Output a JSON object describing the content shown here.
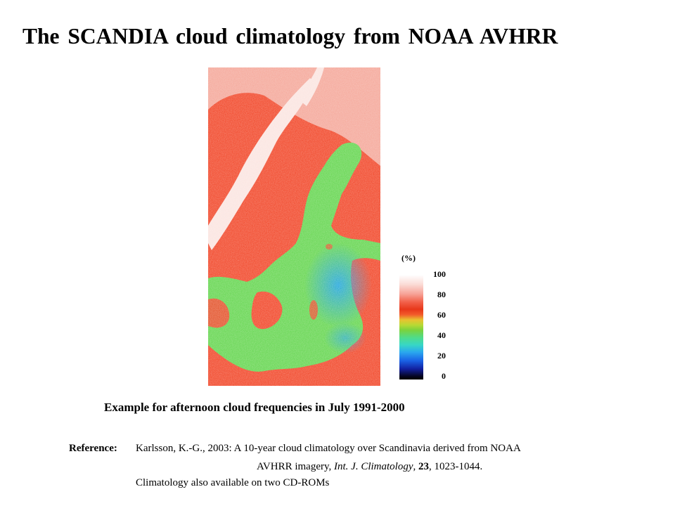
{
  "title": "The SCANDIA cloud climatology from NOAA AVHRR",
  "legend": {
    "unit": "(%)",
    "ticks": [
      "100",
      "80",
      "60",
      "40",
      "20",
      "0"
    ],
    "colors": {
      "c100": "#ffffff",
      "c80": "#f7a59a",
      "c60": "#e8371a",
      "c40": "#7ad23e",
      "c20": "#2aa7ee",
      "c0": "#000000"
    }
  },
  "map_colors": {
    "land_high": "#f6bcb2",
    "land": "#f25236",
    "mountains": "#fbe6e2",
    "sea": "#6ed85a",
    "sea_clear": "#3fb8d8"
  },
  "caption": "Example for afternoon cloud frequencies in July 1991-2000",
  "reference": {
    "label": "Reference:",
    "authors": "Karlsson, K.-G., 2003: A 10-year cloud climatology over Scandinavia derived from NOAA",
    "line2_pre": "AVHRR imagery, ",
    "journal": "Int. J. Climatology",
    "sep1": ", ",
    "volume": "23",
    "pages": ", 1023-1044.",
    "note": "Climatology also available on two CD-ROMs"
  }
}
